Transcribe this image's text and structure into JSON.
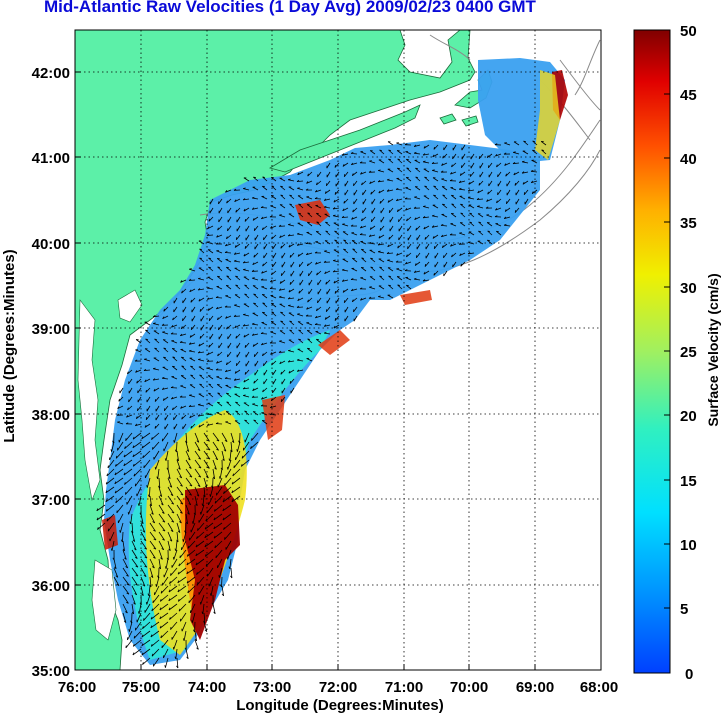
{
  "title": "Mid-Atlantic Raw Velocities (1 Day Avg) 2009/02/23 0400 GMT",
  "xlabel": "Longitude (Degrees:Minutes)",
  "ylabel": "Latitude (Degrees:Minutes)",
  "x_ticks": [
    "76:00",
    "75:00",
    "74:00",
    "73:00",
    "72:00",
    "71:00",
    "70:00",
    "69:00",
    "68:00"
  ],
  "y_ticks": [
    "42:00",
    "41:00",
    "40:00",
    "39:00",
    "38:00",
    "37:00",
    "36:00",
    "35:00"
  ],
  "colorbar": {
    "label": "Surface Velocity (cm/s)",
    "ticks": [
      "50",
      "45",
      "40",
      "35",
      "30",
      "25",
      "20",
      "15",
      "10",
      "5",
      "0"
    ],
    "range": [
      0,
      50
    ],
    "colormap": "jet"
  },
  "colors": {
    "land": "#5cf0a8",
    "title": "#0a0ad8",
    "low_speed": "#2a8cff",
    "high_speed": "#a00000"
  },
  "map": {
    "lon_range": [
      -76,
      -68
    ],
    "lat_range": [
      35,
      42.5
    ],
    "grid": "dotted"
  }
}
